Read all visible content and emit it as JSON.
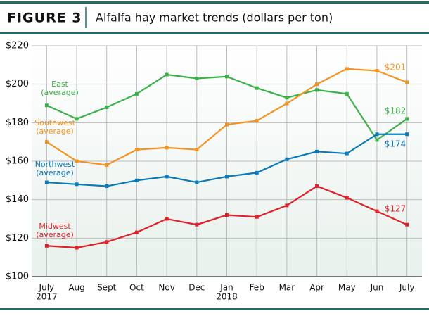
{
  "figure_label": "FIGURE 3",
  "chart_data": {
    "type": "line",
    "title": "Alfalfa hay market trends (dollars per ton)",
    "categories": [
      "July",
      "Aug",
      "Sept",
      "Oct",
      "Nov",
      "Dec",
      "Jan",
      "Feb",
      "Mar",
      "Apr",
      "May",
      "Jun",
      "July"
    ],
    "category_years": [
      "2017",
      null,
      null,
      null,
      null,
      null,
      "2018",
      null,
      null,
      null,
      null,
      null,
      null
    ],
    "ylim": [
      100,
      220
    ],
    "yticks": [
      {
        "value": 100,
        "label": "$100"
      },
      {
        "value": 120,
        "label": "$120"
      },
      {
        "value": 140,
        "label": "$140"
      },
      {
        "value": 160,
        "label": "$160"
      },
      {
        "value": 180,
        "label": "$180"
      },
      {
        "value": 200,
        "label": "$200"
      },
      {
        "value": 220,
        "label": "$220"
      }
    ],
    "grid": true,
    "series": [
      {
        "name": "East",
        "sublabel": "(average)",
        "color": "#3cb04a",
        "values": [
          189,
          182,
          188,
          195,
          205,
          203,
          204,
          198,
          193,
          197,
          195,
          171,
          182
        ],
        "value_labels": [
          null,
          null,
          null,
          null,
          null,
          null,
          null,
          null,
          null,
          null,
          null,
          null,
          "$182"
        ]
      },
      {
        "name": "Southwest",
        "sublabel": "(average)",
        "color": "#f39322",
        "values": [
          170,
          160,
          158,
          166,
          167,
          166,
          179,
          181,
          190,
          200,
          208,
          207,
          201
        ],
        "value_labels": [
          null,
          null,
          null,
          null,
          null,
          null,
          null,
          null,
          null,
          null,
          null,
          null,
          "$201"
        ]
      },
      {
        "name": "Northwest",
        "sublabel": "(average)",
        "color": "#0a7ab8",
        "values": [
          149,
          148,
          147,
          150,
          152,
          149,
          152,
          154,
          161,
          165,
          164,
          174,
          174
        ],
        "value_labels": [
          null,
          null,
          null,
          null,
          null,
          null,
          null,
          null,
          null,
          null,
          null,
          null,
          "$174"
        ]
      },
      {
        "name": "Midwest",
        "sublabel": "(average)",
        "color": "#e0202a",
        "values": [
          116,
          115,
          118,
          123,
          130,
          127,
          132,
          131,
          137,
          147,
          141,
          134,
          127
        ],
        "value_labels": [
          null,
          null,
          null,
          null,
          null,
          null,
          null,
          null,
          null,
          null,
          null,
          null,
          "$127"
        ]
      }
    ]
  }
}
